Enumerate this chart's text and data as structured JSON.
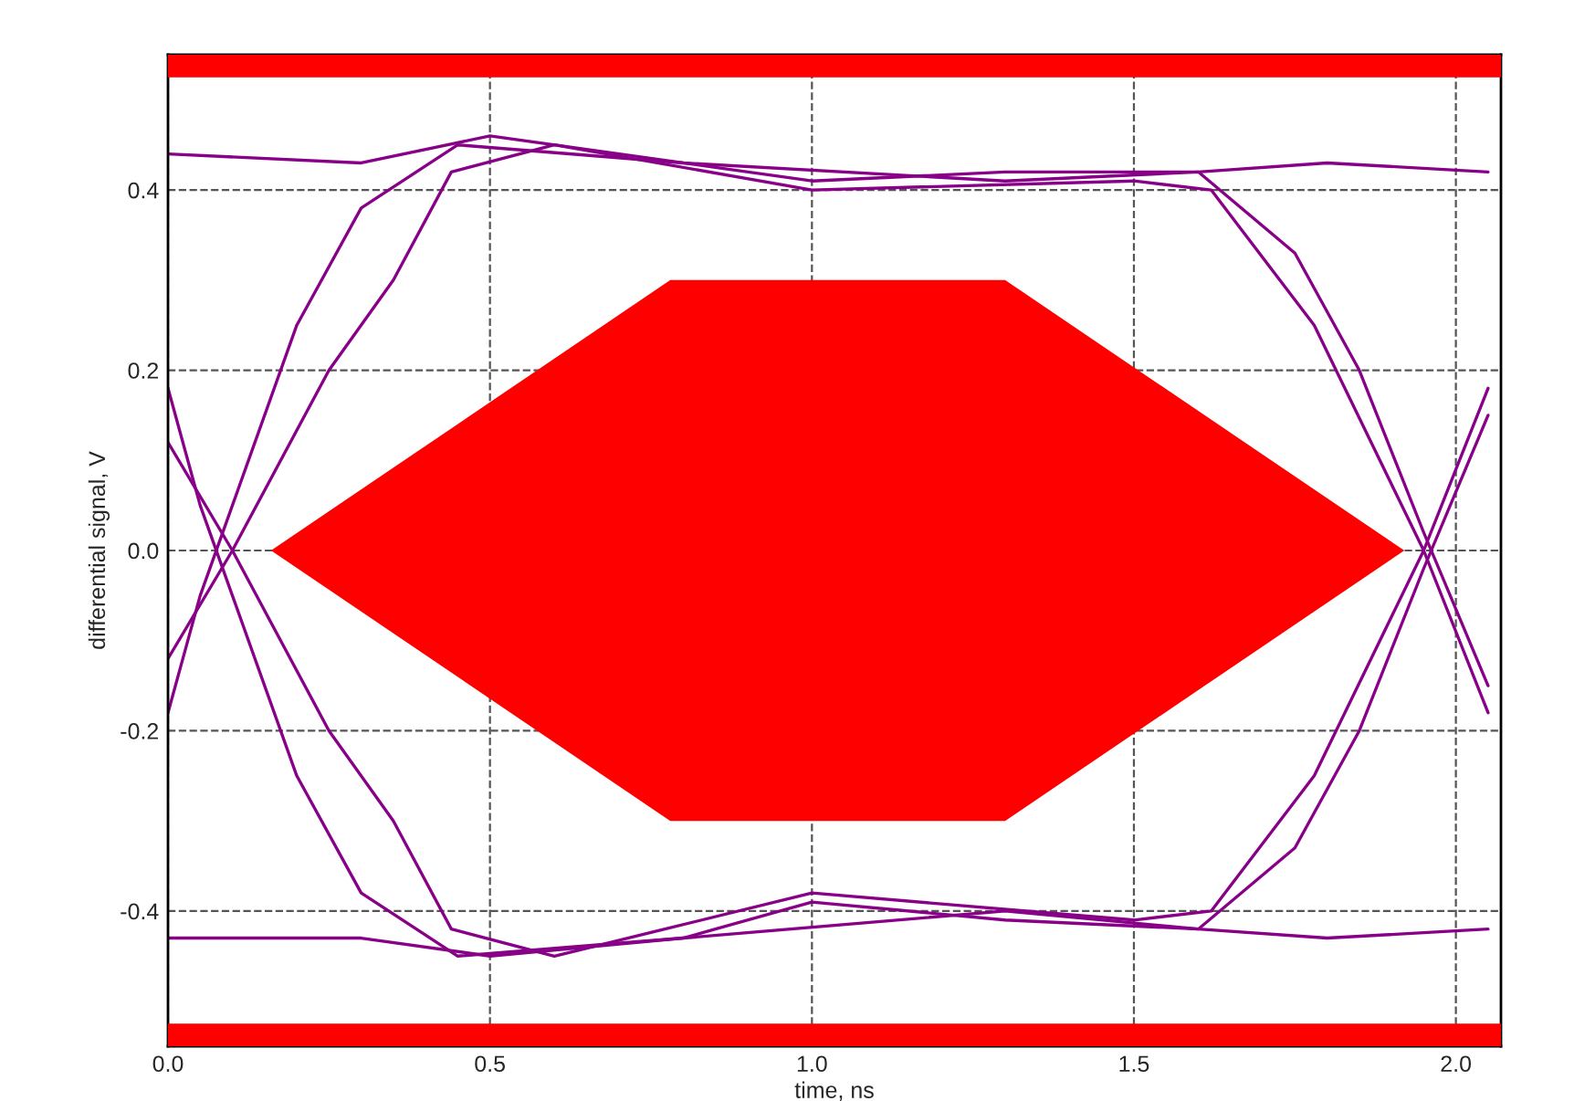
{
  "chart_data": {
    "type": "line",
    "xlabel": "time, ns",
    "ylabel": "differential signal, V",
    "xlim": [
      0,
      2.07
    ],
    "ylim": [
      -0.55,
      0.55
    ],
    "xticks": [
      {
        "value": 0,
        "label": "0.0"
      },
      {
        "value": 0.5,
        "label": "0.5"
      },
      {
        "value": 1,
        "label": "1.0"
      },
      {
        "value": 1.5,
        "label": "1.5"
      },
      {
        "value": 2,
        "label": "2.0"
      }
    ],
    "yticks": [
      {
        "value": -0.4,
        "label": "-0.4"
      },
      {
        "value": -0.2,
        "label": "-0.2"
      },
      {
        "value": 0,
        "label": "0.0"
      },
      {
        "value": 0.2,
        "label": "0.2"
      },
      {
        "value": 0.4,
        "label": "0.4"
      }
    ],
    "grid": true,
    "line_style": "solid",
    "marker": "none",
    "bands": [
      {
        "axis": "y",
        "from": 0.525,
        "to": 0.55,
        "color": "#ff0000"
      },
      {
        "axis": "y",
        "from": -0.55,
        "to": -0.525,
        "color": "#ff0000"
      }
    ],
    "series": [
      {
        "type": "area",
        "color": "#ff0000",
        "x": [
          0.16,
          0.78,
          1.3,
          1.92,
          1.3,
          0.78,
          0.16
        ],
        "values": [
          0,
          0.3,
          0.3,
          0,
          -0.3,
          -0.3,
          0
        ]
      },
      {
        "color": "#880088",
        "x": [
          0,
          0.3,
          0.5,
          0.8,
          1.0,
          1.3,
          1.6,
          1.8,
          2.05
        ],
        "values": [
          0.44,
          0.43,
          0.46,
          0.43,
          0.41,
          0.42,
          0.42,
          0.43,
          0.42
        ]
      },
      {
        "color": "#880088",
        "x": [
          0,
          0.3,
          0.5,
          0.8,
          1.0,
          1.3,
          1.6,
          1.8,
          2.05
        ],
        "values": [
          -0.43,
          -0.43,
          -0.45,
          -0.43,
          -0.39,
          -0.41,
          -0.42,
          -0.43,
          -0.42
        ]
      },
      {
        "color": "#880088",
        "x": [
          0,
          0.05,
          0.1,
          0.2,
          0.3,
          0.45,
          0.8,
          1.3,
          1.6,
          1.75,
          1.85,
          1.95,
          2.05
        ],
        "values": [
          -0.18,
          -0.05,
          0.05,
          0.25,
          0.38,
          0.45,
          0.43,
          0.41,
          0.42,
          0.33,
          0.2,
          0.02,
          -0.15
        ]
      },
      {
        "color": "#880088",
        "x": [
          0,
          0.05,
          0.1,
          0.2,
          0.3,
          0.45,
          0.8,
          1.3,
          1.6,
          1.75,
          1.85,
          1.95,
          2.05
        ],
        "values": [
          0.18,
          0.05,
          -0.05,
          -0.25,
          -0.38,
          -0.45,
          -0.43,
          -0.4,
          -0.42,
          -0.33,
          -0.2,
          -0.02,
          0.15
        ]
      },
      {
        "color": "#880088",
        "x": [
          0,
          0.1,
          0.25,
          0.35,
          0.44,
          0.6,
          1.0,
          1.5,
          1.62,
          1.78,
          1.95,
          2.05
        ],
        "values": [
          -0.12,
          0,
          0.2,
          0.3,
          0.42,
          0.45,
          0.4,
          0.41,
          0.4,
          0.25,
          0,
          -0.18
        ]
      },
      {
        "color": "#880088",
        "x": [
          0,
          0.1,
          0.25,
          0.35,
          0.44,
          0.6,
          1.0,
          1.5,
          1.62,
          1.78,
          1.95,
          2.05
        ],
        "values": [
          0.12,
          0,
          -0.2,
          -0.3,
          -0.42,
          -0.45,
          -0.38,
          -0.41,
          -0.4,
          -0.25,
          0,
          0.18
        ]
      }
    ]
  }
}
